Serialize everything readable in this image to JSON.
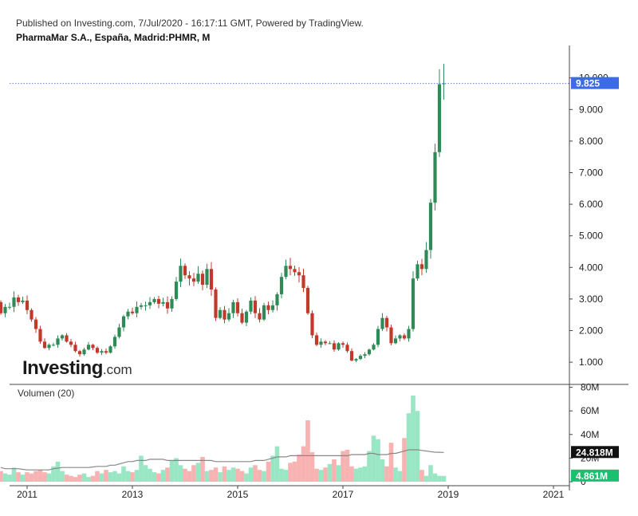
{
  "header": {
    "published": "Published on Investing.com, 7/Jul/2020 - 16:17:11 GMT, Powered by TradingView.",
    "symbol": "PharmaMar S.A., España, Madrid:PHMR, M"
  },
  "logo": {
    "main": "Investing",
    "suffix": ".com"
  },
  "volume_panel": {
    "label": "Volumen (20)"
  },
  "colors": {
    "up": "#2e8b57",
    "down": "#c0392b",
    "vol_up": "#99e6c4",
    "vol_down": "#f7b2b2",
    "price_line": "#6c7de0",
    "price_badge": "#3d6be8",
    "vol_ma_badge": "#111111",
    "vol_last_badge": "#19c06f",
    "axis": "#444444",
    "ma_line": "#888888"
  },
  "chart_data": {
    "type": "candlestick",
    "interval": "M",
    "x_ticks": [
      "2011",
      "2013",
      "2015",
      "2017",
      "2019",
      "2021"
    ],
    "x_tick_years": [
      2011,
      2013,
      2015,
      2017,
      2019,
      2021
    ],
    "price_axis": {
      "ticks": [
        "1.000",
        "2.000",
        "3.000",
        "4.000",
        "5.000",
        "6.000",
        "7.000",
        "8.000",
        "9.000",
        "10.000"
      ],
      "ylim": [
        0,
        10.5
      ],
      "position": "right"
    },
    "volume_axis": {
      "ticks": [
        "0",
        "20M",
        "40M",
        "60M",
        "80M"
      ],
      "ylim": [
        0,
        80
      ],
      "unit": "M"
    },
    "last_price_label": "9.825",
    "last_price": 9.825,
    "vol_ma_label": "24.818M",
    "vol_ma_value": 24.818,
    "last_volume_label": "4.861M",
    "last_volume_value": 4.861,
    "start": [
      2010,
      7
    ],
    "closes": [
      2.55,
      2.75,
      2.75,
      3.05,
      2.9,
      2.95,
      2.65,
      2.35,
      2.05,
      1.65,
      1.45,
      1.55,
      1.55,
      1.75,
      1.85,
      1.65,
      1.55,
      1.35,
      1.25,
      1.4,
      1.55,
      1.45,
      1.3,
      1.35,
      1.3,
      1.5,
      1.8,
      2.1,
      2.45,
      2.6,
      2.55,
      2.75,
      2.8,
      2.8,
      2.9,
      3.0,
      2.85,
      2.9,
      2.7,
      3.0,
      3.55,
      4.05,
      3.75,
      3.65,
      3.55,
      3.8,
      3.45,
      3.95,
      3.3,
      2.4,
      2.65,
      2.35,
      2.55,
      2.9,
      2.55,
      2.25,
      2.6,
      2.95,
      2.55,
      2.35,
      2.8,
      2.65,
      2.8,
      3.15,
      3.7,
      4.05,
      3.95,
      3.85,
      3.75,
      3.35,
      2.55,
      1.85,
      1.55,
      1.65,
      1.6,
      1.6,
      1.4,
      1.6,
      1.55,
      1.35,
      1.05,
      1.1,
      1.2,
      1.25,
      1.4,
      1.55,
      2.05,
      2.4,
      2.1,
      1.6,
      1.75,
      1.85,
      1.75,
      2.05,
      3.65,
      4.1,
      3.95,
      4.55,
      6.05,
      7.65,
      9.8,
      9.825
    ],
    "volumes_m": [
      9,
      7,
      6,
      12,
      8,
      6,
      8,
      7,
      9,
      10,
      8,
      7,
      13,
      17,
      9,
      6,
      5,
      4,
      6,
      7,
      4,
      5,
      9,
      7,
      10,
      8,
      9,
      7,
      13,
      9,
      8,
      10,
      22,
      14,
      11,
      8,
      7,
      10,
      12,
      18,
      20,
      14,
      11,
      9,
      14,
      16,
      21,
      9,
      10,
      12,
      8,
      13,
      10,
      12,
      11,
      9,
      7,
      12,
      14,
      10,
      9,
      17,
      22,
      30,
      11,
      10,
      16,
      17,
      23,
      30,
      52,
      25,
      11,
      10,
      12,
      15,
      19,
      14,
      26,
      27,
      13,
      11,
      12,
      13,
      26,
      39,
      36,
      19,
      13,
      33,
      12,
      9,
      37,
      58,
      73,
      60,
      10,
      5,
      14,
      7,
      5,
      4.861
    ],
    "vol_ma_m": [
      12,
      11,
      11,
      11,
      11,
      10.5,
      10,
      10,
      10,
      10,
      10,
      10,
      11,
      11.5,
      12,
      12,
      12,
      12,
      12,
      12,
      12,
      12.5,
      13,
      13,
      13,
      14,
      14,
      15,
      16,
      17,
      17,
      18,
      18,
      18,
      19,
      19,
      19,
      19,
      18,
      18,
      18,
      18,
      18,
      18,
      18,
      18,
      18,
      18,
      18,
      17,
      17,
      17,
      17,
      17,
      17,
      17,
      17,
      17,
      18,
      18,
      18,
      19,
      20,
      21,
      21,
      21,
      22,
      22,
      22,
      22,
      22,
      22,
      22,
      22,
      22,
      22,
      22,
      22,
      22,
      22,
      23,
      23,
      23,
      23,
      24,
      24,
      23,
      23,
      23,
      24,
      24,
      25,
      26,
      27,
      27,
      27,
      26.5,
      26,
      25.5,
      25,
      24.9,
      24.818
    ]
  }
}
